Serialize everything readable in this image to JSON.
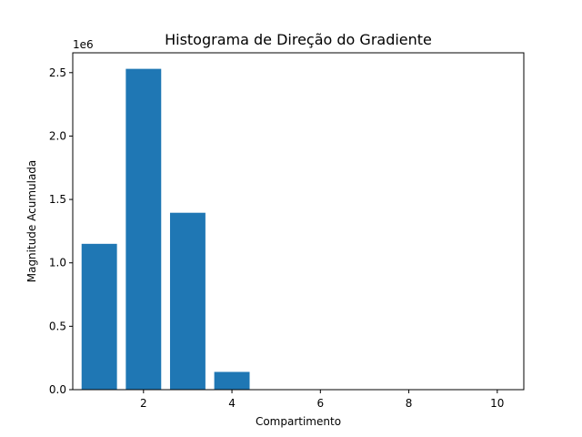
{
  "chart_data": {
    "type": "bar",
    "title": "Histograma de Direção do Gradiente",
    "xlabel": "Compartimento",
    "ylabel": "Magnitude Acumulada",
    "y_offset_label": "1e6",
    "x": [
      1,
      2,
      3,
      4,
      5,
      6,
      7,
      8,
      9,
      10
    ],
    "values": [
      1150000,
      2530000,
      1395000,
      140000,
      0,
      0,
      0,
      0,
      0,
      0
    ],
    "xlim": [
      0.4,
      10.6
    ],
    "ylim": [
      0,
      2656500
    ],
    "x_ticks": [
      2,
      4,
      6,
      8,
      10
    ],
    "x_tick_labels": [
      "2",
      "4",
      "6",
      "8",
      "10"
    ],
    "y_ticks": [
      0,
      500000,
      1000000,
      1500000,
      2000000,
      2500000
    ],
    "y_tick_labels": [
      "0.0",
      "0.5",
      "1.0",
      "1.5",
      "2.0",
      "2.5"
    ],
    "bar_color": "#1f77b4",
    "grid": false,
    "legend": "none"
  }
}
